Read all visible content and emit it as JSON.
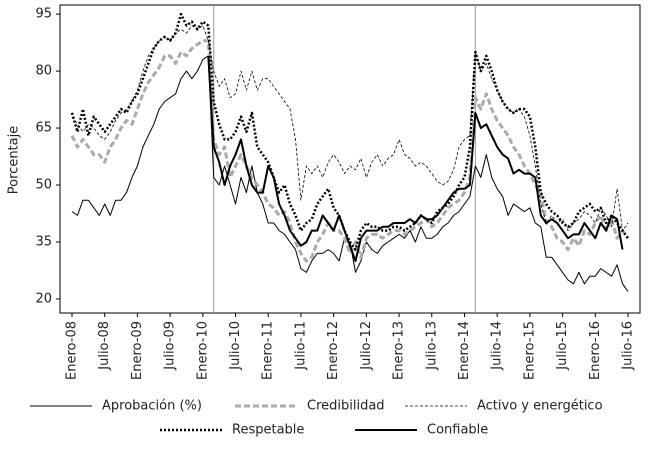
{
  "chart_data": {
    "type": "line",
    "y_label": "Porcentaje",
    "categories": [
      "Enero-08",
      null,
      null,
      null,
      null,
      null,
      "Julio-08",
      null,
      null,
      null,
      null,
      null,
      "Enero-09",
      null,
      null,
      null,
      null,
      null,
      "Julio-09",
      null,
      null,
      null,
      null,
      null,
      "Enero-10",
      null,
      null,
      null,
      null,
      null,
      "Julio-10",
      null,
      null,
      null,
      null,
      null,
      "Enero-11",
      null,
      null,
      null,
      null,
      null,
      "Julio-11",
      null,
      null,
      null,
      null,
      null,
      "Enero-12",
      null,
      null,
      null,
      null,
      null,
      "Julio-12",
      null,
      null,
      null,
      null,
      null,
      "Enero-13",
      null,
      null,
      null,
      null,
      null,
      "Julio-13",
      null,
      null,
      null,
      null,
      null,
      "Enero-14",
      null,
      null,
      null,
      null,
      null,
      "Julio-14",
      null,
      null,
      null,
      null,
      null,
      "Enero-15",
      null,
      null,
      null,
      null,
      null,
      "Julio-15",
      null,
      null,
      null,
      null,
      null,
      "Enero-16",
      null,
      null,
      null,
      null,
      null,
      "Julio-16"
    ],
    "series": [
      {
        "name": "Aprobación (%)",
        "color": "#000000",
        "width": 1,
        "dash": "solid",
        "values": [
          43,
          42,
          46,
          46,
          44,
          42,
          45,
          42,
          46,
          46,
          48,
          52,
          55,
          60,
          63,
          66,
          70,
          72,
          73,
          74,
          78,
          80,
          78,
          80,
          83,
          84,
          52,
          50,
          55,
          50,
          45,
          52,
          48,
          55,
          48,
          45,
          40,
          40,
          38,
          37,
          35,
          33,
          28,
          27,
          30,
          32,
          32,
          33,
          32,
          30,
          36,
          35,
          27,
          30,
          35,
          33,
          32,
          34,
          35,
          36,
          37,
          36,
          38,
          35,
          39,
          36,
          36,
          37,
          39,
          40,
          42,
          43,
          45,
          47,
          55,
          52,
          58,
          52,
          49,
          47,
          42,
          45,
          44,
          43,
          44,
          40,
          39,
          31,
          31,
          29,
          27,
          25,
          24,
          27,
          24,
          26,
          26,
          28,
          27,
          26,
          29,
          24,
          22
        ]
      },
      {
        "name": "Credibilidad",
        "color": "#aaaaaa",
        "width": 3,
        "dash": "dashed",
        "values": [
          63,
          60,
          62,
          60,
          58,
          58,
          56,
          60,
          62,
          65,
          67,
          66,
          70,
          74,
          77,
          79,
          81,
          84,
          84,
          82,
          85,
          84,
          86,
          87,
          88,
          88,
          62,
          58,
          60,
          52,
          55,
          58,
          55,
          52,
          50,
          48,
          45,
          44,
          42,
          43,
          40,
          35,
          32,
          30,
          31,
          35,
          37,
          40,
          38,
          38,
          36,
          32,
          35,
          31,
          36,
          37,
          37,
          36,
          37,
          38,
          38,
          37,
          38,
          39,
          40,
          41,
          39,
          40,
          42,
          44,
          45,
          46,
          48,
          52,
          73,
          70,
          74,
          70,
          67,
          65,
          63,
          60,
          58,
          55,
          53,
          50,
          48,
          40,
          39,
          36,
          35,
          33,
          36,
          34,
          38,
          37,
          40,
          42,
          38,
          41,
          36,
          38,
          36
        ]
      },
      {
        "name": "Activo y energético",
        "color": "#000000",
        "width": 0.8,
        "dash": "thin-dashed",
        "values": [
          68,
          66,
          64,
          66,
          65,
          63,
          62,
          64,
          67,
          69,
          70,
          72,
          75,
          80,
          84,
          86,
          88,
          89,
          88,
          90,
          91,
          90,
          92,
          91,
          92,
          88,
          80,
          76,
          78,
          73,
          74,
          80,
          75,
          80,
          75,
          78,
          78,
          76,
          74,
          72,
          70,
          62,
          46,
          55,
          53,
          55,
          52,
          56,
          58,
          56,
          53,
          55,
          54,
          57,
          52,
          56,
          58,
          55,
          57,
          58,
          62,
          58,
          57,
          55,
          56,
          55,
          53,
          51,
          50,
          51,
          54,
          60,
          62,
          63,
          85,
          80,
          82,
          78,
          75,
          72,
          70,
          69,
          70,
          68,
          63,
          55,
          45,
          40,
          42,
          40,
          41,
          38,
          40,
          41,
          43,
          42,
          40,
          44,
          42,
          39,
          49,
          38,
          40
        ]
      },
      {
        "name": "Respetable",
        "color": "#000000",
        "width": 2.5,
        "dash": "dotted",
        "values": [
          69,
          64,
          70,
          63,
          68,
          66,
          64,
          66,
          68,
          70,
          69,
          72,
          74,
          78,
          82,
          86,
          88,
          89,
          88,
          90,
          95,
          92,
          93,
          91,
          93,
          92,
          72,
          66,
          62,
          62,
          64,
          68,
          64,
          69,
          60,
          58,
          56,
          52,
          48,
          50,
          45,
          42,
          38,
          40,
          41,
          45,
          47,
          49,
          44,
          42,
          38,
          35,
          33,
          38,
          40,
          39,
          39,
          38,
          38,
          39,
          39,
          38,
          39,
          40,
          42,
          41,
          40,
          43,
          44,
          45,
          47,
          50,
          52,
          60,
          85,
          80,
          84,
          80,
          75,
          72,
          70,
          69,
          70,
          70,
          68,
          60,
          48,
          45,
          43,
          42,
          40,
          39,
          40,
          43,
          44,
          45,
          43,
          44,
          40,
          42,
          40,
          38,
          36
        ]
      },
      {
        "name": "Confiable",
        "color": "#000000",
        "width": 2,
        "dash": "solid",
        "values": [
          null,
          null,
          null,
          null,
          null,
          null,
          null,
          null,
          null,
          null,
          null,
          null,
          null,
          null,
          null,
          null,
          null,
          null,
          null,
          null,
          null,
          null,
          null,
          null,
          null,
          84,
          60,
          56,
          50,
          55,
          58,
          62,
          55,
          50,
          48,
          48,
          55,
          52,
          45,
          42,
          38,
          36,
          34,
          35,
          38,
          38,
          42,
          40,
          38,
          42,
          38,
          34,
          30,
          36,
          38,
          38,
          38,
          39,
          39,
          40,
          40,
          40,
          41,
          40,
          42,
          41,
          41,
          42,
          44,
          46,
          48,
          49,
          49,
          50,
          69,
          65,
          66,
          63,
          60,
          58,
          57,
          53,
          54,
          53,
          53,
          52,
          42,
          40,
          41,
          40,
          38,
          36,
          37,
          37,
          40,
          38,
          36,
          40,
          38,
          42,
          41,
          33,
          null
        ]
      }
    ],
    "vlines": [
      26,
      74
    ],
    "ylim": [
      16.3,
      97.4
    ],
    "yticks": [
      20,
      35,
      50,
      65,
      80,
      95
    ],
    "legend": "bottom"
  }
}
